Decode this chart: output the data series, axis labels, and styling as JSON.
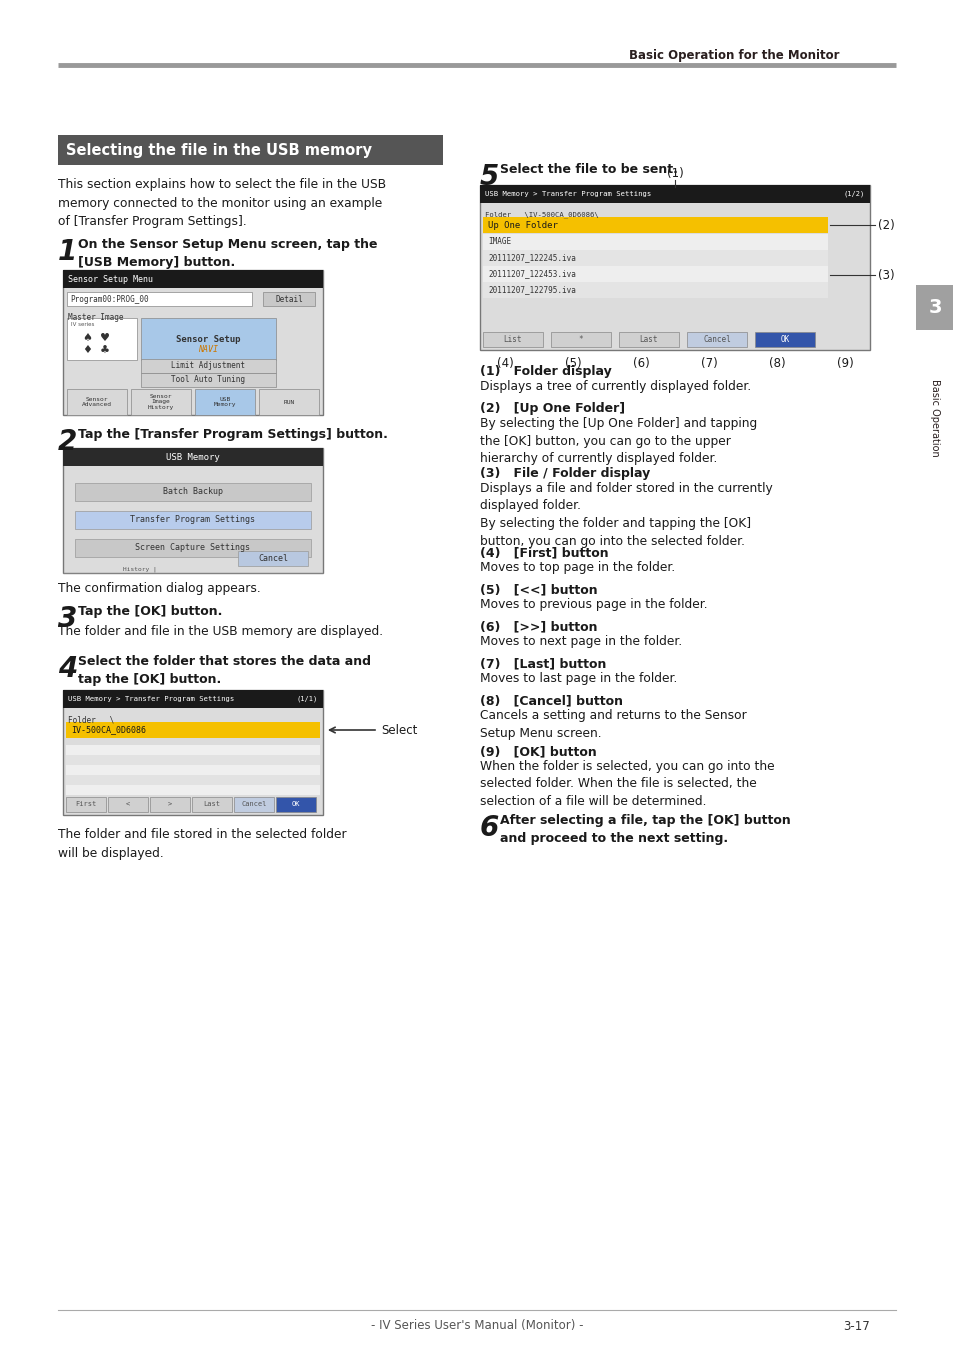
{
  "page_header": "Basic Operation for the Monitor",
  "section_title": "Selecting the file in the USB memory",
  "intro_text": "This section explains how to select the file in the USB\nmemory connected to the monitor using an example\nof [Transfer Program Settings].",
  "step1_text": "On the Sensor Setup Menu screen, tap the\n[USB Memory] button.",
  "step2_text": "Tap the [Transfer Program Settings] button.",
  "step2_sub": "The confirmation dialog appears.",
  "step3_text": "Tap the [OK] button.",
  "step3_sub": "The folder and file in the USB memory are displayed.",
  "step4_text": "Select the folder that stores the data and\ntap the [OK] button.",
  "step4_sub": "The folder and file stored in the selected folder\nwill be displayed.",
  "step5_text": "Select the file to be sent.",
  "step6_text": "After selecting a file, tap the [OK] button\nand proceed to the next setting.",
  "ann_headers": [
    "(1)   Folder display",
    "(2)   [Up One Folder]",
    "(3)   File / Folder display",
    "(4)   [First] button",
    "(5)   [<<] button",
    "(6)   [>>] button",
    "(7)   [Last] button",
    "(8)   [Cancel] button",
    "(9)   [OK] button"
  ],
  "ann_bodies": [
    "Displays a tree of currently displayed folder.",
    "By selecting the [Up One Folder] and tapping\nthe [OK] button, you can go to the upper\nhierarchy of currently displayed folder.",
    "Displays a file and folder stored in the currently\ndisplayed folder.\nBy selecting the folder and tapping the [OK]\nbutton, you can go into the selected folder.",
    "Moves to top page in the folder.",
    "Moves to previous page in the folder.",
    "Moves to next page in the folder.",
    "Moves to last page in the folder.",
    "Cancels a setting and returns to the Sensor\nSetup Menu screen.",
    "When the folder is selected, you can go into the\nselected folder. When the file is selected, the\nselection of a file will be determined."
  ],
  "footer_text": "- IV Series User's Manual (Monitor) -",
  "footer_page": "3-17"
}
